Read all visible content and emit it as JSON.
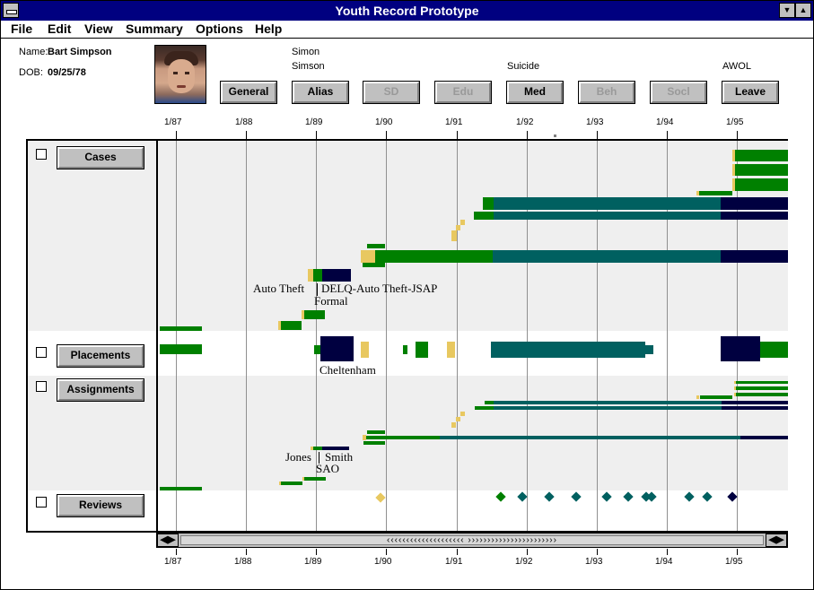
{
  "window": {
    "title": "Youth Record Prototype",
    "minimize_glyph": "▼",
    "maximize_glyph": "▲"
  },
  "menu": [
    "File",
    "Edit",
    "View",
    "Summary",
    "Options",
    "Help"
  ],
  "person": {
    "name_label": "Name:",
    "name": "Bart Simpson",
    "dob_label": "DOB:",
    "dob": "09/25/78"
  },
  "alias_text": [
    "Simon",
    "Simson"
  ],
  "suicide_text": "Suicide",
  "awol_text": "AWOL",
  "tabs": [
    {
      "label": "General",
      "enabled": true
    },
    {
      "label": "Alias",
      "enabled": true
    },
    {
      "label": "SD",
      "enabled": false
    },
    {
      "label": "Edu",
      "enabled": false
    },
    {
      "label": "Med",
      "enabled": true
    },
    {
      "label": "Beh",
      "enabled": false
    },
    {
      "label": "Socl",
      "enabled": false
    },
    {
      "label": "Leave",
      "enabled": true
    }
  ],
  "timeline_ticks": [
    "1/87",
    "1/88",
    "1/89",
    "1/90",
    "1/91",
    "1/92",
    "1/93",
    "1/94",
    "1/95"
  ],
  "sections": [
    {
      "label": "Cases"
    },
    {
      "label": "Placements"
    },
    {
      "label": "Assignments"
    },
    {
      "label": "Reviews"
    }
  ],
  "annotations": {
    "cases_1": "Auto Theft",
    "cases_2": "DELQ-Auto Theft-JSAP",
    "cases_3": "Formal",
    "placements_1": "Cheltenham",
    "assignments_1": "Jones",
    "assignments_2": "Smith",
    "assignments_3": "SAO"
  },
  "scrollbar": {
    "left_glyph": "◀▶",
    "right_glyph": "◀▶",
    "track_text": "‹‹‹‹‹‹‹‹‹‹‹‹‹‹‹‹‹‹‹‹ ›››››››››››››››››››››››"
  },
  "colors": {
    "green": "#008000",
    "teal": "#006060",
    "navy": "#000040",
    "yellow": "#e8c860",
    "band_gray": "#efefef"
  }
}
